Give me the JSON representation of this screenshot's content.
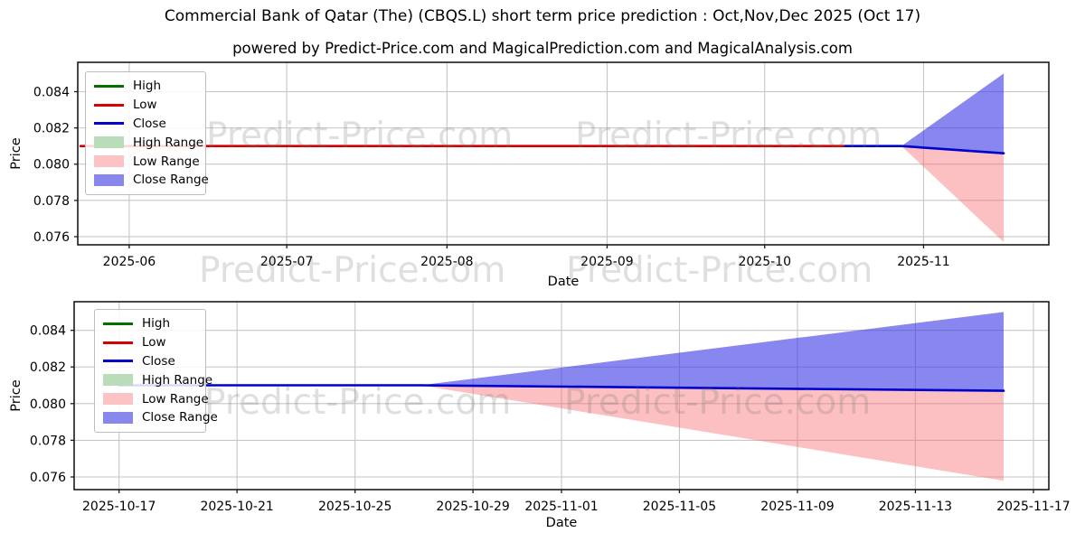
{
  "header": {
    "title": "Commercial Bank of Qatar (The) (CBQS.L) short term price prediction : Oct,Nov,Dec 2025 (Oct 17)",
    "subtitle": "powered by Predict-Price.com and MagicalPrediction.com and MagicalAnalysis.com"
  },
  "watermark": {
    "text": "Predict-Price.com"
  },
  "legend": {
    "items": [
      {
        "label": "High",
        "swatch": "line",
        "color": "#007000"
      },
      {
        "label": "Low",
        "swatch": "line",
        "color": "#d40000"
      },
      {
        "label": "Close",
        "swatch": "line",
        "color": "#0000cc"
      },
      {
        "label": "High Range",
        "swatch": "patch",
        "color": "#b9dcb9"
      },
      {
        "label": "Low Range",
        "swatch": "patch",
        "color": "#fbc3c3"
      },
      {
        "label": "Close Range",
        "swatch": "patch",
        "color": "#8787ec"
      }
    ]
  },
  "chart_data": [
    {
      "type": "line",
      "title": "",
      "xlabel": "Date",
      "ylabel": "Price",
      "grid": true,
      "legend_position": "upper left",
      "ylim": [
        0.07555,
        0.08562
      ],
      "y_ticks": [
        0.084,
        0.082,
        0.08,
        0.078,
        0.076
      ],
      "x_ticks": [
        {
          "label": "2025-06",
          "f": 0.053
        },
        {
          "label": "2025-07",
          "f": 0.2152
        },
        {
          "label": "2025-08",
          "f": 0.3802
        },
        {
          "label": "2025-09",
          "f": 0.5451
        },
        {
          "label": "2025-10",
          "f": 0.7074
        },
        {
          "label": "2025-11",
          "f": 0.871
        }
      ],
      "fills": [
        {
          "name": "Low Range",
          "color": "rgba(248,105,110,0.42)",
          "points": [
            [
              0.8482,
              0.081
            ],
            [
              0.9535,
              0.0806
            ],
            [
              0.9535,
              0.0757
            ]
          ]
        },
        {
          "name": "Close Range",
          "color": "rgba(55,55,228,0.60)",
          "points": [
            [
              0.8482,
              0.081
            ],
            [
              0.9535,
              0.085
            ],
            [
              0.9535,
              0.0806
            ]
          ]
        }
      ],
      "series": [
        {
          "name": "Low",
          "color": "#d40000",
          "points": [
            [
              0.003,
              0.081
            ],
            [
              0.7905,
              0.081
            ]
          ]
        },
        {
          "name": "Close",
          "color": "#0000cc",
          "points": [
            [
              0.7905,
              0.081
            ],
            [
              0.8482,
              0.081
            ],
            [
              0.9535,
              0.0806
            ]
          ]
        }
      ]
    },
    {
      "type": "line",
      "title": "",
      "xlabel": "Date",
      "ylabel": "Price",
      "grid": true,
      "legend_position": "upper left",
      "ylim": [
        0.07531,
        0.08556
      ],
      "y_ticks": [
        0.084,
        0.082,
        0.08,
        0.078,
        0.076
      ],
      "x_ticks": [
        {
          "label": "2025-10-17",
          "f": 0.0461
        },
        {
          "label": "2025-10-21",
          "f": 0.1671
        },
        {
          "label": "2025-10-25",
          "f": 0.2882
        },
        {
          "label": "2025-10-29",
          "f": 0.4092
        },
        {
          "label": "2025-11-01",
          "f": 0.5
        },
        {
          "label": "2025-11-05",
          "f": 0.621
        },
        {
          "label": "2025-11-09",
          "f": 0.7421
        },
        {
          "label": "2025-11-13",
          "f": 0.8631
        },
        {
          "label": "2025-11-17",
          "f": 0.9842
        }
      ],
      "fills": [
        {
          "name": "Low Range",
          "color": "rgba(248,105,110,0.42)",
          "points": [
            [
              0.3553,
              0.081
            ],
            [
              0.9536,
              0.0807
            ],
            [
              0.9536,
              0.0758
            ]
          ]
        },
        {
          "name": "Close Range",
          "color": "rgba(55,55,228,0.60)",
          "points": [
            [
              0.3553,
              0.081
            ],
            [
              0.9536,
              0.085
            ],
            [
              0.9536,
              0.0807
            ]
          ]
        }
      ],
      "series": [
        {
          "name": "Close",
          "color": "#0000cc",
          "points": [
            [
              0.0461,
              0.081
            ],
            [
              0.3553,
              0.081
            ],
            [
              0.9536,
              0.0807
            ]
          ]
        }
      ]
    }
  ]
}
